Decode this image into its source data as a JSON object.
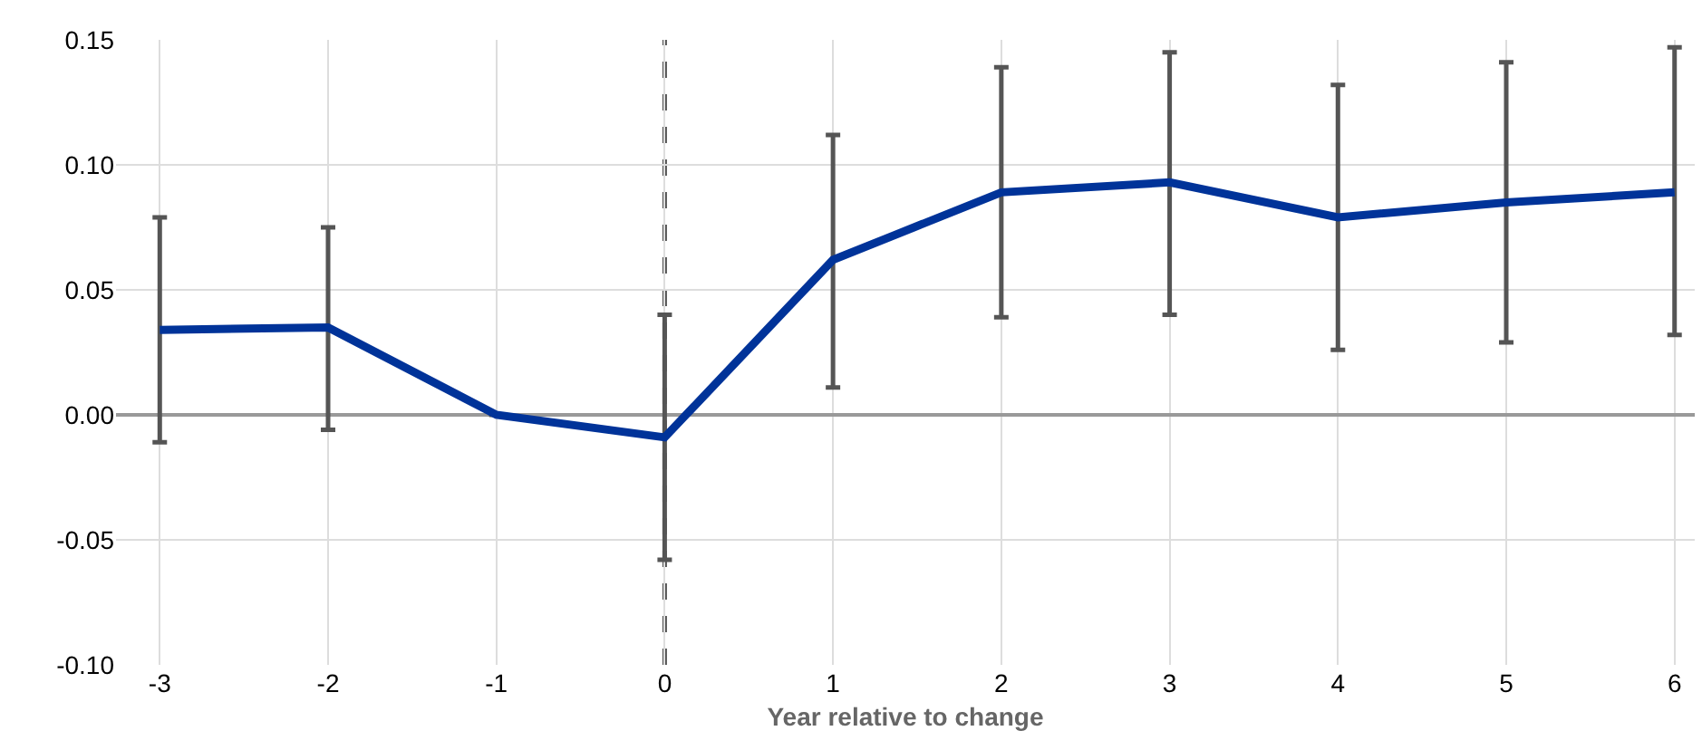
{
  "chart_data": {
    "type": "line",
    "xlabel": "Year relative to change",
    "categories": [
      "-3",
      "-2",
      "-1",
      "0",
      "1",
      "2",
      "3",
      "4",
      "5",
      "6"
    ],
    "series": [
      {
        "color": "#003399",
        "values": [
          0.034,
          0.035,
          0,
          -0.009,
          0.062,
          0.089,
          0.093,
          0.079,
          0.085,
          0.089
        ],
        "errors": [
          [
            -0.011,
            0.079
          ],
          [
            -0.006,
            0.075
          ],
          null,
          [
            -0.058,
            0.04
          ],
          [
            0.011,
            0.112
          ],
          [
            0.039,
            0.139
          ],
          [
            0.04,
            0.145
          ],
          [
            0.026,
            0.132
          ],
          [
            0.029,
            0.141
          ],
          [
            0.032,
            0.147
          ]
        ]
      }
    ],
    "ylim": [
      -0.1,
      0.15
    ],
    "yticks": [
      {
        "value": -0.1,
        "label": "-0.10"
      },
      {
        "value": -0.05,
        "label": "-0.05"
      },
      {
        "value": 0,
        "label": "0.00"
      },
      {
        "value": 0.05,
        "label": "0.05"
      },
      {
        "value": 0.1,
        "label": "0.10"
      },
      {
        "value": 0.15,
        "label": "0.15"
      }
    ],
    "ref_lines": [
      {
        "axis": "x",
        "value": "0",
        "color": "#555555",
        "line_style": "dashed"
      }
    ],
    "grid": true,
    "marker": "none",
    "line_style": "solid"
  }
}
